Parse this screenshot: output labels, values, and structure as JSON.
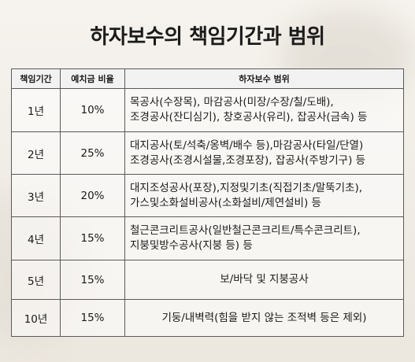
{
  "title": "하자보수의 책임기간과 범위",
  "table": {
    "headers": [
      "책임기간",
      "예치금 비율",
      "하자보수 범위"
    ],
    "rows": [
      {
        "period": "1년",
        "ratio": "10%",
        "scope": [
          "목공사(수장목), 마감공사(미장/수장/칠/도배),",
          "조경공사(잔디심기), 창호공사(유리), 잡공사(금속) 등"
        ]
      },
      {
        "period": "2년",
        "ratio": "25%",
        "scope": [
          "대지공사(토/석축/옹벽/배수 등),마감공사(타일/단열)",
          "조경공사(조경시설물,조경포장), 잡공사(주방기구) 등"
        ]
      },
      {
        "period": "3년",
        "ratio": "20%",
        "scope": [
          "대지조성공사(포장),지정및기초(직접기초/말뚝기초),",
          "가스및소화설비공사(소화설비/제연설비) 등"
        ]
      },
      {
        "period": "4년",
        "ratio": "15%",
        "scope": [
          "철근콘크리트공사(일반철근콘크리트/특수콘크리트),",
          "지붕및방수공사(지붕 등) 등"
        ]
      },
      {
        "period": "5년",
        "ratio": "15%",
        "scope": [
          "보/바닥 및 지붕공사"
        ]
      },
      {
        "period": "10년",
        "ratio": "15%",
        "scope": [
          "기둥/내벽력(힘을 받지 않는 조적벽 등은 제외)"
        ]
      }
    ]
  }
}
